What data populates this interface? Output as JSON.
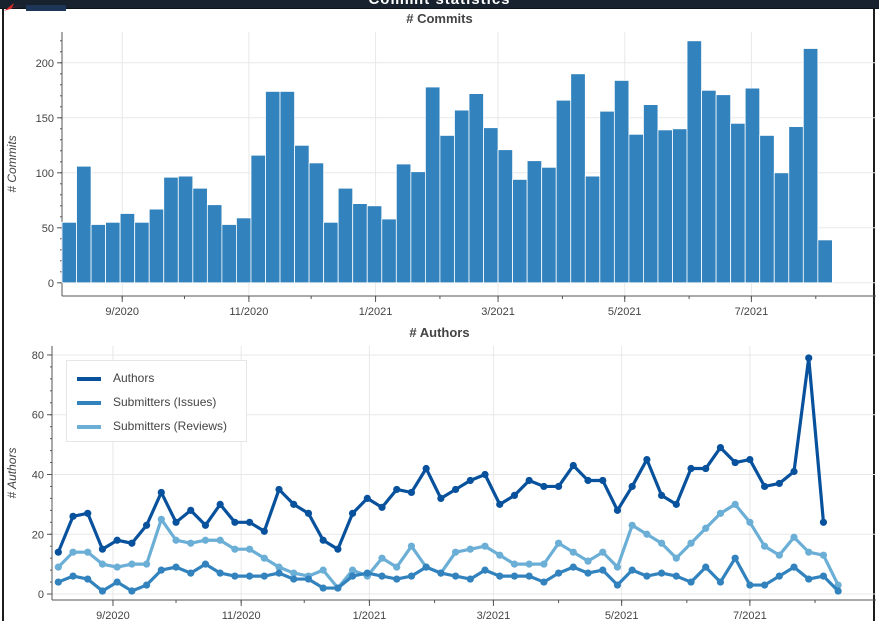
{
  "header": {
    "title": "Commit statistics"
  },
  "chart_data": [
    {
      "type": "bar",
      "title": "# Commits",
      "xlabel": "",
      "ylabel": "# Commits",
      "ylim": [
        -12,
        228
      ],
      "yticks": [
        0,
        50,
        100,
        150,
        200
      ],
      "x_start": "2020-08-03",
      "bin_days": 7,
      "xlim": [
        "2020-08-03",
        "2021-08-30"
      ],
      "xticks": [
        {
          "date": "2020-09-01",
          "label": "9/2020"
        },
        {
          "date": "2020-11-01",
          "label": "11/2020"
        },
        {
          "date": "2021-01-01",
          "label": "1/2021"
        },
        {
          "date": "2021-03-01",
          "label": "3/2021"
        },
        {
          "date": "2021-05-01",
          "label": "5/2021"
        },
        {
          "date": "2021-07-01",
          "label": "7/2021"
        }
      ],
      "values": [
        55,
        106,
        53,
        55,
        63,
        55,
        67,
        96,
        97,
        86,
        71,
        53,
        59,
        116,
        174,
        174,
        125,
        109,
        55,
        86,
        72,
        70,
        58,
        108,
        101,
        178,
        134,
        157,
        172,
        141,
        121,
        94,
        111,
        105,
        166,
        190,
        97,
        156,
        184,
        135,
        162,
        139,
        140,
        220,
        175,
        171,
        145,
        177,
        134,
        100,
        142,
        213,
        39
      ],
      "color": "#3182bd",
      "grid": true
    },
    {
      "type": "line",
      "title": "# Authors",
      "xlabel": "",
      "ylabel": "# Authors",
      "ylim": [
        -2,
        83
      ],
      "yticks": [
        0,
        20,
        40,
        60,
        80
      ],
      "x_start": "2020-08-06",
      "step_days": 7,
      "xlim": [
        "2020-08-03",
        "2021-08-30"
      ],
      "xticks": [
        {
          "date": "2020-09-01",
          "label": "9/2020"
        },
        {
          "date": "2020-11-01",
          "label": "11/2020"
        },
        {
          "date": "2021-01-01",
          "label": "1/2021"
        },
        {
          "date": "2021-03-01",
          "label": "3/2021"
        },
        {
          "date": "2021-05-01",
          "label": "5/2021"
        },
        {
          "date": "2021-07-01",
          "label": "7/2021"
        }
      ],
      "legend_position": "top-left",
      "grid": true,
      "series": [
        {
          "name": "Authors",
          "color": "#08519c",
          "values": [
            14,
            26,
            27,
            15,
            18,
            17,
            23,
            34,
            24,
            28,
            23,
            30,
            24,
            24,
            21,
            35,
            30,
            27,
            18,
            15,
            27,
            32,
            29,
            35,
            34,
            42,
            32,
            35,
            38,
            40,
            30,
            33,
            38,
            36,
            36,
            43,
            38,
            38,
            28,
            36,
            45,
            33,
            30,
            42,
            42,
            49,
            44,
            45,
            36,
            37,
            41,
            79,
            24
          ]
        },
        {
          "name": "Submitters (Issues)",
          "color": "#3182bd",
          "values": [
            4,
            6,
            5,
            1,
            4,
            1,
            3,
            8,
            9,
            7,
            10,
            7,
            6,
            6,
            6,
            7,
            5,
            5,
            2,
            2,
            6,
            7,
            6,
            5,
            6,
            9,
            7,
            6,
            5,
            8,
            6,
            6,
            6,
            4,
            7,
            9,
            7,
            8,
            3,
            8,
            6,
            7,
            6,
            4,
            9,
            4,
            12,
            3,
            3,
            6,
            9,
            5,
            6,
            1
          ]
        },
        {
          "name": "Submitters (Reviews)",
          "color": "#6baed6",
          "values": [
            9,
            14,
            14,
            10,
            9,
            10,
            10,
            25,
            18,
            17,
            18,
            18,
            15,
            15,
            12,
            9,
            7,
            6,
            8,
            2,
            8,
            6,
            12,
            9,
            16,
            9,
            7,
            14,
            15,
            16,
            13,
            10,
            10,
            10,
            17,
            14,
            11,
            14,
            9,
            23,
            20,
            17,
            12,
            17,
            22,
            27,
            30,
            24,
            16,
            13,
            19,
            14,
            13,
            3
          ]
        }
      ]
    }
  ]
}
